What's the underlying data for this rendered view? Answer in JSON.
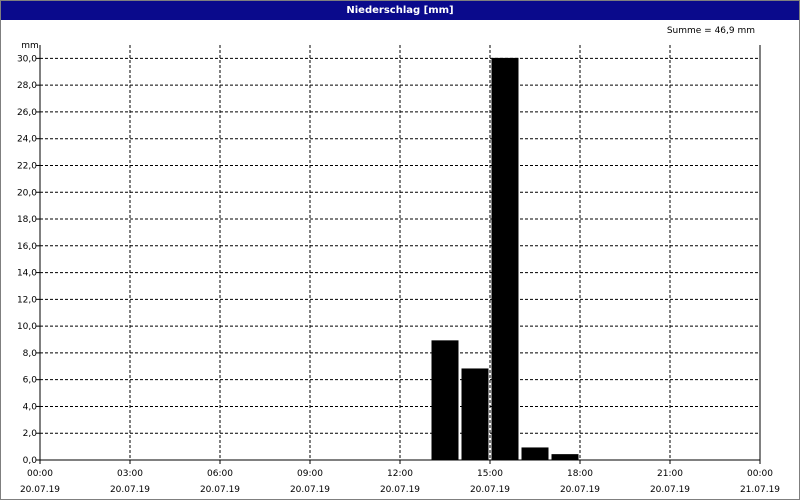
{
  "window": {
    "title": "Niederschlag [mm]"
  },
  "summary_text": "Summe = 46,9 mm",
  "colors": {
    "title_bar": "#0a0a8c",
    "bars": "#000000",
    "grid": "#000000",
    "background": "#ffffff"
  },
  "chart_data": {
    "type": "bar",
    "title": "Niederschlag [mm]",
    "ylabel": "mm",
    "xlabel": "",
    "ylim": [
      0,
      31
    ],
    "y_ticks": [
      "0,0",
      "2,0",
      "4,0",
      "6,0",
      "8,0",
      "10,0",
      "12,0",
      "14,0",
      "16,0",
      "18,0",
      "20,0",
      "22,0",
      "24,0",
      "26,0",
      "28,0",
      "30,0"
    ],
    "x_ticks": [
      {
        "time": "00:00",
        "date": "20.07.19"
      },
      {
        "time": "03:00",
        "date": "20.07.19"
      },
      {
        "time": "06:00",
        "date": "20.07.19"
      },
      {
        "time": "09:00",
        "date": "20.07.19"
      },
      {
        "time": "12:00",
        "date": "20.07.19"
      },
      {
        "time": "15:00",
        "date": "20.07.19"
      },
      {
        "time": "18:00",
        "date": "20.07.19"
      },
      {
        "time": "21:00",
        "date": "20.07.19"
      },
      {
        "time": "00:00",
        "date": "21.07.19"
      }
    ],
    "xlim": [
      "20.07.19 00:00",
      "21.07.19 00:00"
    ],
    "bars": [
      {
        "start": "20.07.19 13:00",
        "end": "20.07.19 14:00",
        "value": 8.9
      },
      {
        "start": "20.07.19 14:00",
        "end": "20.07.19 15:00",
        "value": 6.8
      },
      {
        "start": "20.07.19 15:00",
        "end": "20.07.19 16:00",
        "value": 30.0
      },
      {
        "start": "20.07.19 16:00",
        "end": "20.07.19 17:00",
        "value": 0.9
      },
      {
        "start": "20.07.19 17:00",
        "end": "20.07.19 18:00",
        "value": 0.4
      }
    ],
    "grid": true,
    "legend": "none"
  }
}
